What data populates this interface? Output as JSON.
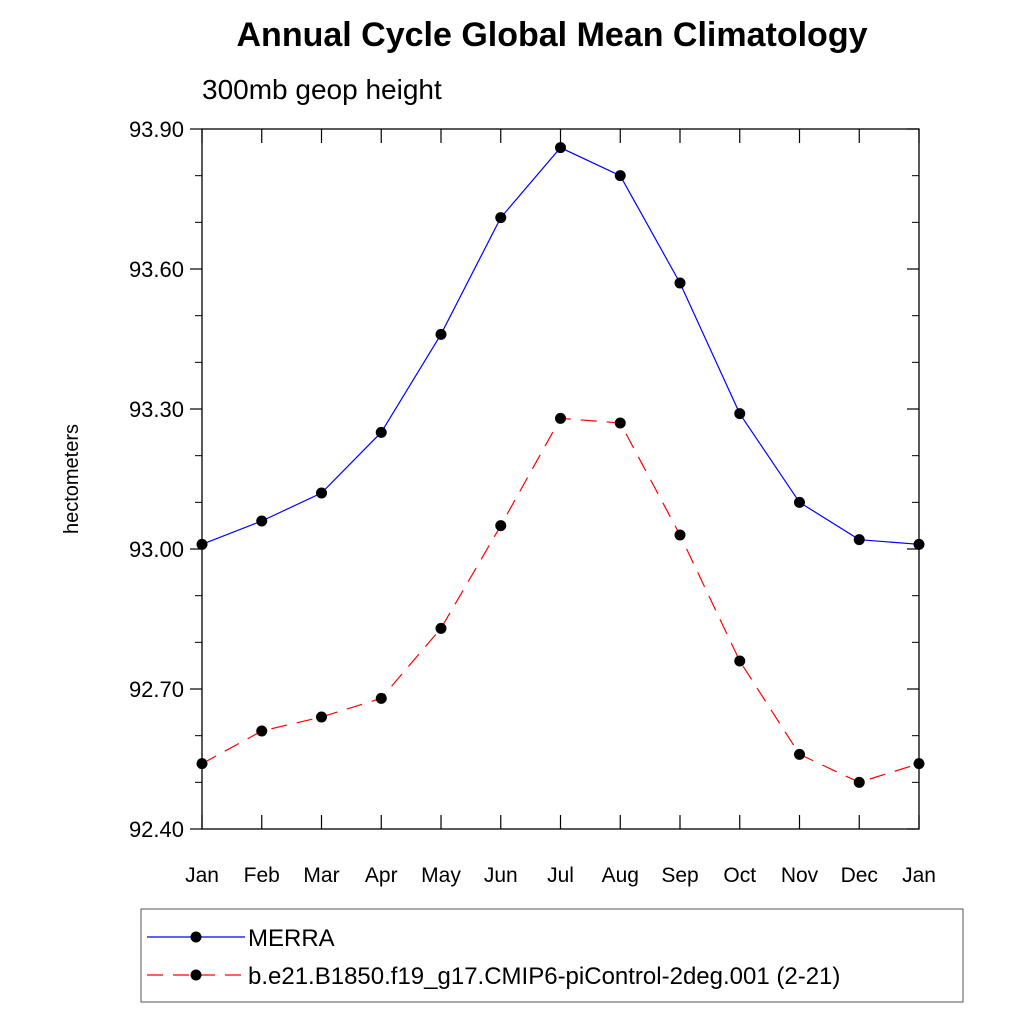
{
  "chart_data": {
    "type": "line",
    "title": "Annual Cycle Global Mean Climatology",
    "subtitle": "300mb geop height",
    "ylabel": "hectometers",
    "xlabel": "",
    "categories": [
      "Jan",
      "Feb",
      "Mar",
      "Apr",
      "May",
      "Jun",
      "Jul",
      "Aug",
      "Sep",
      "Oct",
      "Nov",
      "Dec",
      "Jan"
    ],
    "ylim": [
      92.4,
      93.9
    ],
    "yticks": [
      "93.90",
      "93.60",
      "93.30",
      "93.00",
      "92.70",
      "92.40"
    ],
    "ytick_values": [
      93.9,
      93.6,
      93.3,
      93.0,
      92.7,
      92.4
    ],
    "series": [
      {
        "name": "MERRA",
        "color": "#0000ff",
        "dash": "solid",
        "values": [
          93.01,
          93.06,
          93.12,
          93.25,
          93.46,
          93.71,
          93.86,
          93.8,
          93.57,
          93.29,
          93.1,
          93.02,
          93.01
        ]
      },
      {
        "name": "b.e21.B1850.f19_g17.CMIP6-piControl-2deg.001 (2-21)",
        "color": "#ff0000",
        "dash": "dashed",
        "values": [
          92.54,
          92.61,
          92.64,
          92.68,
          92.83,
          93.05,
          93.28,
          93.27,
          93.03,
          92.76,
          92.56,
          92.5,
          92.54
        ]
      }
    ],
    "legend_position": "bottom"
  }
}
